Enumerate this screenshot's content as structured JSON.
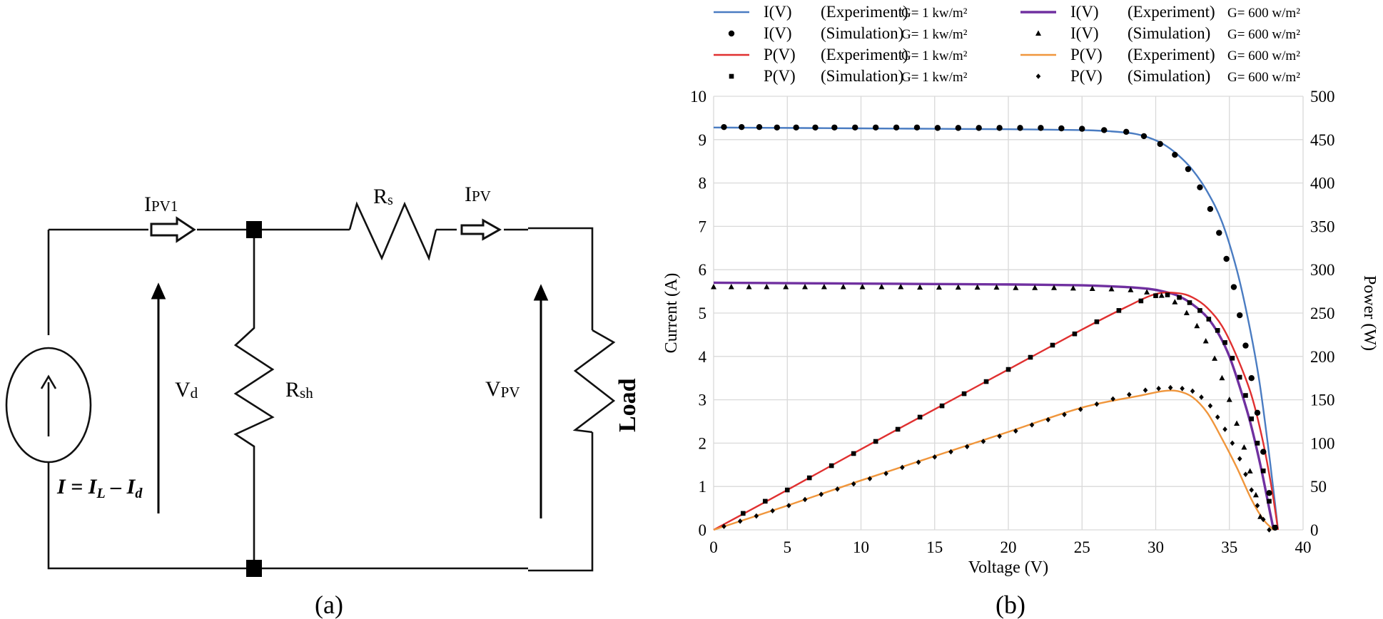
{
  "panel_a": {
    "caption": "(a)",
    "labels": {
      "ipv1": "IPV1",
      "rs": "Rs",
      "ipv": "IPV",
      "vd": "Vd",
      "rsh": "Rsh",
      "vpv": "VPV",
      "load": "Load",
      "source_eq": "I = IL – Id"
    },
    "icons": [
      "current-source-icon",
      "resistor-icon",
      "arrow-icon",
      "node-icon"
    ]
  },
  "panel_b": {
    "caption": "(b)"
  },
  "chart_data": {
    "type": "line",
    "xlabel": "Voltage (V)",
    "ylabel": "Current (A)",
    "y2label": "Power (W)",
    "xlim": [
      0,
      40
    ],
    "ylim": [
      0,
      10
    ],
    "y2lim": [
      0,
      500
    ],
    "xticks": [
      0,
      5,
      10,
      15,
      20,
      25,
      30,
      35,
      40
    ],
    "yticks": [
      0,
      1,
      2,
      3,
      4,
      5,
      6,
      7,
      8,
      9,
      10
    ],
    "y2ticks": [
      0,
      50,
      100,
      150,
      200,
      250,
      300,
      350,
      400,
      450,
      500
    ],
    "grid": true,
    "legend_position": "top",
    "legend": [
      {
        "name": "I(V)",
        "kind": "(Experiment)",
        "cond": "G= 1 kw/m²",
        "style": "line",
        "color": "#4a7cc2"
      },
      {
        "name": "I(V)",
        "kind": "(Experiment)",
        "cond": "G= 600 w/m²",
        "style": "line",
        "color": "#7030a0"
      },
      {
        "name": "I(V)",
        "kind": "(Simulation)",
        "cond": "G= 1 kw/m²",
        "style": "circle",
        "color": "#000000"
      },
      {
        "name": "I(V)",
        "kind": "(Simulation)",
        "cond": "G= 600 w/m²",
        "style": "triangle",
        "color": "#000000"
      },
      {
        "name": "P(V)",
        "kind": "(Experiment)",
        "cond": "G= 1 kw/m²",
        "style": "line",
        "color": "#e03030"
      },
      {
        "name": "P(V)",
        "kind": "(Experiment)",
        "cond": "G= 600 w/m²",
        "style": "line",
        "color": "#f0963c"
      },
      {
        "name": "P(V)",
        "kind": "(Simulation)",
        "cond": "G= 1 kw/m²",
        "style": "square",
        "color": "#000000"
      },
      {
        "name": "P(V)",
        "kind": "(Simulation)",
        "cond": "G= 600 w/m²",
        "style": "diamond",
        "color": "#000000"
      }
    ],
    "series": [
      {
        "name": "I(V) Experiment G=1 kw/m²",
        "axis": "left",
        "style": "line",
        "color": "#4a7cc2",
        "x": [
          0,
          5,
          10,
          15,
          20,
          25,
          27,
          28.5,
          29.5,
          30.5,
          31.5,
          32.5,
          33.5,
          34.5,
          35.5,
          36.3,
          37,
          37.6,
          38.1,
          38.3
        ],
        "y": [
          9.28,
          9.27,
          9.26,
          9.25,
          9.24,
          9.22,
          9.19,
          9.14,
          9.05,
          8.9,
          8.65,
          8.3,
          7.8,
          7.1,
          6.0,
          4.8,
          3.5,
          2.0,
          0.6,
          0
        ]
      },
      {
        "name": "I(V) Simulation G=1 kw/m²",
        "axis": "left",
        "style": "circle",
        "color": "#000000",
        "x": [
          0.7,
          1.9,
          3.1,
          4.3,
          5.6,
          6.9,
          8.2,
          9.6,
          11.0,
          12.4,
          13.8,
          15.2,
          16.6,
          18.0,
          19.4,
          20.8,
          22.2,
          23.6,
          25.0,
          26.5,
          28.0,
          29.2,
          30.3,
          31.3,
          32.2,
          33.0,
          33.7,
          34.3,
          34.8,
          35.3,
          35.7,
          36.1,
          36.5,
          36.9,
          37.3,
          37.7,
          38.1
        ],
        "y": [
          9.29,
          9.29,
          9.29,
          9.28,
          9.28,
          9.28,
          9.28,
          9.28,
          9.28,
          9.28,
          9.28,
          9.27,
          9.27,
          9.27,
          9.27,
          9.27,
          9.27,
          9.26,
          9.25,
          9.22,
          9.18,
          9.08,
          8.9,
          8.65,
          8.32,
          7.9,
          7.4,
          6.85,
          6.25,
          5.6,
          4.95,
          4.25,
          3.5,
          2.7,
          1.8,
          0.85,
          0.05
        ]
      },
      {
        "name": "I(V) Experiment G=600 w/m²",
        "axis": "left",
        "style": "line",
        "color": "#7030a0",
        "x": [
          0,
          5,
          10,
          15,
          20,
          25,
          28,
          29.5,
          30.5,
          31.5,
          32.5,
          33.5,
          34.3,
          35.0,
          35.7,
          36.4,
          37.1,
          37.7,
          38.0
        ],
        "y": [
          5.7,
          5.69,
          5.68,
          5.67,
          5.66,
          5.64,
          5.6,
          5.56,
          5.5,
          5.4,
          5.2,
          4.9,
          4.5,
          4.0,
          3.3,
          2.5,
          1.5,
          0.5,
          0
        ]
      },
      {
        "name": "I(V) Simulation G=600 w/m²",
        "axis": "left",
        "style": "triangle",
        "color": "#000000",
        "x": [
          0,
          1.2,
          2.4,
          3.6,
          4.9,
          6.2,
          7.5,
          8.8,
          10.1,
          11.4,
          12.7,
          14.0,
          15.3,
          16.6,
          17.9,
          19.2,
          20.5,
          21.8,
          23.1,
          24.4,
          25.7,
          27.0,
          28.3,
          29.4,
          30.4,
          31.3,
          32.1,
          32.8,
          33.4,
          34.0,
          34.5,
          35.0,
          35.5,
          36.0,
          36.4,
          36.8,
          37.1
        ],
        "y": [
          5.6,
          5.6,
          5.6,
          5.6,
          5.6,
          5.6,
          5.6,
          5.6,
          5.6,
          5.6,
          5.6,
          5.59,
          5.59,
          5.59,
          5.59,
          5.59,
          5.58,
          5.58,
          5.58,
          5.57,
          5.56,
          5.55,
          5.53,
          5.48,
          5.4,
          5.25,
          5.0,
          4.7,
          4.35,
          3.95,
          3.5,
          3.0,
          2.45,
          1.9,
          1.35,
          0.8,
          0.3
        ]
      },
      {
        "name": "P(V) Experiment G=1 kw/m²",
        "axis": "right",
        "style": "line",
        "color": "#e03030",
        "x": [
          0,
          5,
          10,
          15,
          20,
          25,
          28,
          30,
          31.5,
          32.5,
          33.5,
          34.5,
          35.5,
          36.5,
          37.3,
          37.9,
          38.3
        ],
        "y": [
          0,
          46,
          93,
          139,
          185,
          231,
          257,
          272,
          273,
          268,
          256,
          235,
          200,
          155,
          100,
          45,
          0
        ]
      },
      {
        "name": "P(V) Simulation G=1 kw/m²",
        "axis": "right",
        "style": "square",
        "color": "#000000",
        "x": [
          2,
          3.5,
          5,
          6.5,
          8,
          9.5,
          11,
          12.5,
          14,
          15.5,
          17,
          18.5,
          20,
          21.5,
          23,
          24.5,
          26,
          27.5,
          29,
          30,
          30.8,
          31.6,
          32.3,
          33,
          33.6,
          34.2,
          34.7,
          35.2,
          35.7,
          36.1,
          36.5,
          36.9,
          37.3,
          37.7,
          38.1
        ],
        "y": [
          19,
          33,
          46,
          60,
          74,
          88,
          102,
          116,
          130,
          143,
          157,
          171,
          185,
          199,
          213,
          226,
          240,
          253,
          264,
          270,
          271,
          268,
          262,
          253,
          243,
          230,
          216,
          198,
          176,
          155,
          128,
          100,
          68,
          33,
          3
        ]
      },
      {
        "name": "P(V) Experiment G=600 w/m²",
        "axis": "right",
        "style": "line",
        "color": "#f0963c",
        "x": [
          0,
          5,
          10,
          15,
          20,
          25,
          29,
          30.5,
          31.5,
          32.5,
          33.5,
          34.5,
          35.5,
          36.5,
          37.3,
          38.0
        ],
        "y": [
          0,
          28,
          57,
          85,
          113,
          141,
          155,
          160,
          160,
          153,
          135,
          105,
          72,
          35,
          12,
          0
        ]
      },
      {
        "name": "P(V) Simulation G=600 w/m²",
        "axis": "right",
        "style": "diamond",
        "color": "#000000",
        "x": [
          0.7,
          1.8,
          2.9,
          4.0,
          5.1,
          6.2,
          7.3,
          8.4,
          9.5,
          10.6,
          11.7,
          12.8,
          13.9,
          15.0,
          16.1,
          17.2,
          18.3,
          19.4,
          20.5,
          21.6,
          22.7,
          23.8,
          24.9,
          26.0,
          27.1,
          28.2,
          29.3,
          30.2,
          31.0,
          31.8,
          32.5,
          33.1,
          33.7,
          34.2,
          34.7,
          35.2,
          35.7,
          36.1,
          36.5,
          36.9,
          37.3,
          37.7
        ],
        "y": [
          4,
          10,
          16,
          22,
          28,
          35,
          41,
          47,
          53,
          59,
          65,
          72,
          78,
          84,
          90,
          96,
          102,
          108,
          114,
          121,
          127,
          133,
          139,
          145,
          151,
          156,
          161,
          163,
          164,
          163,
          160,
          153,
          143,
          130,
          116,
          100,
          82,
          64,
          46,
          28,
          12,
          0
        ]
      }
    ]
  }
}
